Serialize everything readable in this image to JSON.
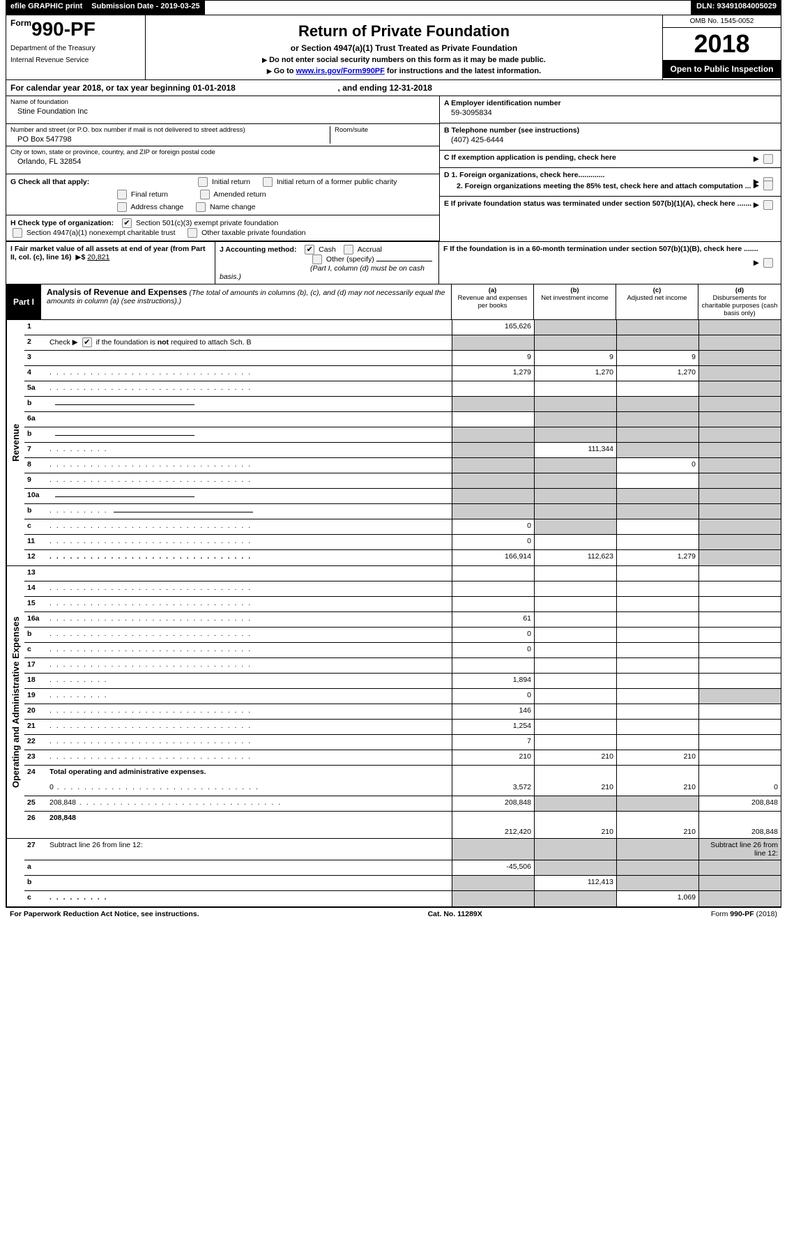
{
  "topbar": {
    "efile": "efile GRAPHIC print",
    "sub_label": "Submission Date - ",
    "sub_date": "2019-03-25",
    "dln_label": "DLN: ",
    "dln": "93491084005029"
  },
  "header": {
    "form_prefix": "Form",
    "form_num": "990-PF",
    "dept1": "Department of the Treasury",
    "dept2": "Internal Revenue Service",
    "title": "Return of Private Foundation",
    "sub": "or Section 4947(a)(1) Trust Treated as Private Foundation",
    "note1": "Do not enter social security numbers on this form as it may be made public.",
    "note2_pre": "Go to ",
    "note2_link": "www.irs.gov/Form990PF",
    "note2_post": " for instructions and the latest information.",
    "omb": "OMB No. 1545-0052",
    "year": "2018",
    "open": "Open to Public Inspection"
  },
  "calyear": {
    "pre": "For calendar year 2018, or tax year beginning ",
    "begin": "01-01-2018",
    "mid": " , and ending ",
    "end": "12-31-2018"
  },
  "info": {
    "name_label": "Name of foundation",
    "name": "Stine Foundation Inc",
    "street_label": "Number and street (or P.O. box number if mail is not delivered to street address)",
    "street": "PO Box 547798",
    "room_label": "Room/suite",
    "city_label": "City or town, state or province, country, and ZIP or foreign postal code",
    "city": "Orlando, FL  32854",
    "a_label": "A Employer identification number",
    "a_val": "59-3095834",
    "b_label": "B Telephone number (see instructions)",
    "b_val": "(407) 425-6444",
    "c_label": "C  If exemption application is pending, check here",
    "d1": "D 1. Foreign organizations, check here.............",
    "d2": "2. Foreign organizations meeting the 85% test, check here and attach computation ...",
    "e_label": "E  If private foundation status was terminated under section 507(b)(1)(A), check here .......",
    "f_label": "F  If the foundation is in a 60-month termination under section 507(b)(1)(B), check here ......."
  },
  "g": {
    "label": "G Check all that apply:",
    "opts": [
      "Initial return",
      "Initial return of a former public charity",
      "Final return",
      "Amended return",
      "Address change",
      "Name change"
    ]
  },
  "h": {
    "label": "H Check type of organization:",
    "opt1": "Section 501(c)(3) exempt private foundation",
    "opt2": "Section 4947(a)(1) nonexempt charitable trust",
    "opt3": "Other taxable private foundation"
  },
  "i": {
    "label": "I Fair market value of all assets at end of year (from Part II, col. (c), line 16)",
    "dollar": "$",
    "val": "20,821"
  },
  "j": {
    "label": "J Accounting method:",
    "cash": "Cash",
    "accrual": "Accrual",
    "other": "Other (specify)",
    "note": "(Part I, column (d) must be on cash basis.)"
  },
  "part1": {
    "badge": "Part I",
    "title": "Analysis of Revenue and Expenses",
    "note": "(The total of amounts in columns (b), (c), and (d) may not necessarily equal the amounts in column (a) (see instructions).)",
    "cols": [
      {
        "k": "(a)",
        "t": "Revenue and expenses per books"
      },
      {
        "k": "(b)",
        "t": "Net investment income"
      },
      {
        "k": "(c)",
        "t": "Adjusted net income"
      },
      {
        "k": "(d)",
        "t": "Disbursements for charitable purposes (cash basis only)"
      }
    ]
  },
  "rev_label": "Revenue",
  "exp_label": "Operating and Administrative Expenses",
  "rows_rev": [
    {
      "n": "1",
      "d": "",
      "a": "165,626",
      "b": "",
      "c": "",
      "sa": false,
      "sb": true,
      "sc": true,
      "sd": true
    },
    {
      "n": "2",
      "d": "",
      "a": "",
      "b": "",
      "c": "",
      "sa": true,
      "sb": true,
      "sc": true,
      "sd": true,
      "chk": true
    },
    {
      "n": "3",
      "d": "",
      "a": "9",
      "b": "9",
      "c": "9",
      "sa": false,
      "sb": false,
      "sc": false,
      "sd": true
    },
    {
      "n": "4",
      "d": "",
      "a": "1,279",
      "b": "1,270",
      "c": "1,270",
      "dots": true,
      "sa": false,
      "sb": false,
      "sc": false,
      "sd": true
    },
    {
      "n": "5a",
      "d": "",
      "a": "",
      "b": "",
      "c": "",
      "dots": true,
      "sa": false,
      "sb": false,
      "sc": false,
      "sd": true
    },
    {
      "n": "b",
      "d": "",
      "a": "",
      "b": "",
      "c": "",
      "sa": true,
      "sb": true,
      "sc": true,
      "sd": true,
      "subline": true
    },
    {
      "n": "6a",
      "d": "",
      "a": "",
      "b": "",
      "c": "",
      "sa": false,
      "sb": true,
      "sc": true,
      "sd": true
    },
    {
      "n": "b",
      "d": "",
      "a": "",
      "b": "",
      "c": "",
      "sa": true,
      "sb": true,
      "sc": true,
      "sd": true,
      "subline": true
    },
    {
      "n": "7",
      "d": "",
      "a": "",
      "b": "111,344",
      "c": "",
      "dots": true,
      "short": true,
      "sa": true,
      "sb": false,
      "sc": true,
      "sd": true
    },
    {
      "n": "8",
      "d": "",
      "a": "",
      "b": "",
      "c": "0",
      "dots": true,
      "sa": true,
      "sb": true,
      "sc": false,
      "sd": true
    },
    {
      "n": "9",
      "d": "",
      "a": "",
      "b": "",
      "c": "",
      "dots": true,
      "sa": true,
      "sb": true,
      "sc": false,
      "sd": true
    },
    {
      "n": "10a",
      "d": "",
      "a": "",
      "b": "",
      "c": "",
      "sa": true,
      "sb": true,
      "sc": true,
      "sd": true,
      "subline": true
    },
    {
      "n": "b",
      "d": "",
      "a": "",
      "b": "",
      "c": "",
      "dots": true,
      "short": true,
      "sa": true,
      "sb": true,
      "sc": true,
      "sd": true,
      "subline": true
    },
    {
      "n": "c",
      "d": "",
      "a": "0",
      "b": "",
      "c": "",
      "dots": true,
      "sa": false,
      "sb": true,
      "sc": false,
      "sd": true
    },
    {
      "n": "11",
      "d": "",
      "a": "0",
      "b": "",
      "c": "",
      "dots": true,
      "sa": false,
      "sb": false,
      "sc": false,
      "sd": true
    },
    {
      "n": "12",
      "d": "",
      "a": "166,914",
      "b": "112,623",
      "c": "1,279",
      "dots": true,
      "bold": true,
      "sa": false,
      "sb": false,
      "sc": false,
      "sd": true
    }
  ],
  "rows_exp": [
    {
      "n": "13",
      "d": "",
      "a": "",
      "b": "",
      "c": "",
      "sa": false,
      "sb": false,
      "sc": false,
      "sd": false
    },
    {
      "n": "14",
      "d": "",
      "a": "",
      "b": "",
      "c": "",
      "dots": true,
      "sa": false,
      "sb": false,
      "sc": false,
      "sd": false
    },
    {
      "n": "15",
      "d": "",
      "a": "",
      "b": "",
      "c": "",
      "dots": true,
      "sa": false,
      "sb": false,
      "sc": false,
      "sd": false
    },
    {
      "n": "16a",
      "d": "",
      "a": "61",
      "b": "",
      "c": "",
      "dots": true,
      "sa": false,
      "sb": false,
      "sc": false,
      "sd": false
    },
    {
      "n": "b",
      "d": "",
      "a": "0",
      "b": "",
      "c": "",
      "dots": true,
      "sa": false,
      "sb": false,
      "sc": false,
      "sd": false
    },
    {
      "n": "c",
      "d": "",
      "a": "0",
      "b": "",
      "c": "",
      "dots": true,
      "sa": false,
      "sb": false,
      "sc": false,
      "sd": false
    },
    {
      "n": "17",
      "d": "",
      "a": "",
      "b": "",
      "c": "",
      "dots": true,
      "sa": false,
      "sb": false,
      "sc": false,
      "sd": false
    },
    {
      "n": "18",
      "d": "",
      "a": "1,894",
      "b": "",
      "c": "",
      "dots": true,
      "short": true,
      "sa": false,
      "sb": false,
      "sc": false,
      "sd": false
    },
    {
      "n": "19",
      "d": "",
      "a": "0",
      "b": "",
      "c": "",
      "dots": true,
      "short": true,
      "sa": false,
      "sb": false,
      "sc": false,
      "sd": true
    },
    {
      "n": "20",
      "d": "",
      "a": "146",
      "b": "",
      "c": "",
      "dots": true,
      "sa": false,
      "sb": false,
      "sc": false,
      "sd": false
    },
    {
      "n": "21",
      "d": "",
      "a": "1,254",
      "b": "",
      "c": "",
      "dots": true,
      "sa": false,
      "sb": false,
      "sc": false,
      "sd": false
    },
    {
      "n": "22",
      "d": "",
      "a": "7",
      "b": "",
      "c": "",
      "dots": true,
      "sa": false,
      "sb": false,
      "sc": false,
      "sd": false
    },
    {
      "n": "23",
      "d": "",
      "a": "210",
      "b": "210",
      "c": "210",
      "dots": true,
      "sa": false,
      "sb": false,
      "sc": false,
      "sd": false
    },
    {
      "n": "24",
      "d": "Total operating and administrative expenses.",
      "bold": true,
      "noval": true
    },
    {
      "n": "",
      "d": "0",
      "a": "3,572",
      "b": "210",
      "c": "210",
      "dots": true,
      "sa": false,
      "sb": false,
      "sc": false,
      "sd": false
    },
    {
      "n": "25",
      "d": "208,848",
      "a": "208,848",
      "b": "",
      "c": "",
      "dots": true,
      "sa": false,
      "sb": true,
      "sc": true,
      "sd": false
    },
    {
      "n": "26",
      "d": "208,848",
      "a": "212,420",
      "b": "210",
      "c": "210",
      "bold": true,
      "tall": true,
      "sa": false,
      "sb": false,
      "sc": false,
      "sd": false
    }
  ],
  "rows_bot": [
    {
      "n": "27",
      "d": "Subtract line 26 from line 12:",
      "sa": true,
      "sb": true,
      "sc": true,
      "sd": true
    },
    {
      "n": "a",
      "d": "",
      "a": "-45,506",
      "b": "",
      "c": "",
      "bold": true,
      "sa": false,
      "sb": true,
      "sc": true,
      "sd": true
    },
    {
      "n": "b",
      "d": "",
      "a": "",
      "b": "112,413",
      "c": "",
      "bold": true,
      "sa": true,
      "sb": false,
      "sc": true,
      "sd": true
    },
    {
      "n": "c",
      "d": "",
      "a": "",
      "b": "",
      "c": "1,069",
      "bold": true,
      "dots": true,
      "short": true,
      "sa": true,
      "sb": true,
      "sc": false,
      "sd": true
    }
  ],
  "footer": {
    "left": "For Paperwork Reduction Act Notice, see instructions.",
    "mid": "Cat. No. 11289X",
    "right": "Form 990-PF (2018)"
  }
}
